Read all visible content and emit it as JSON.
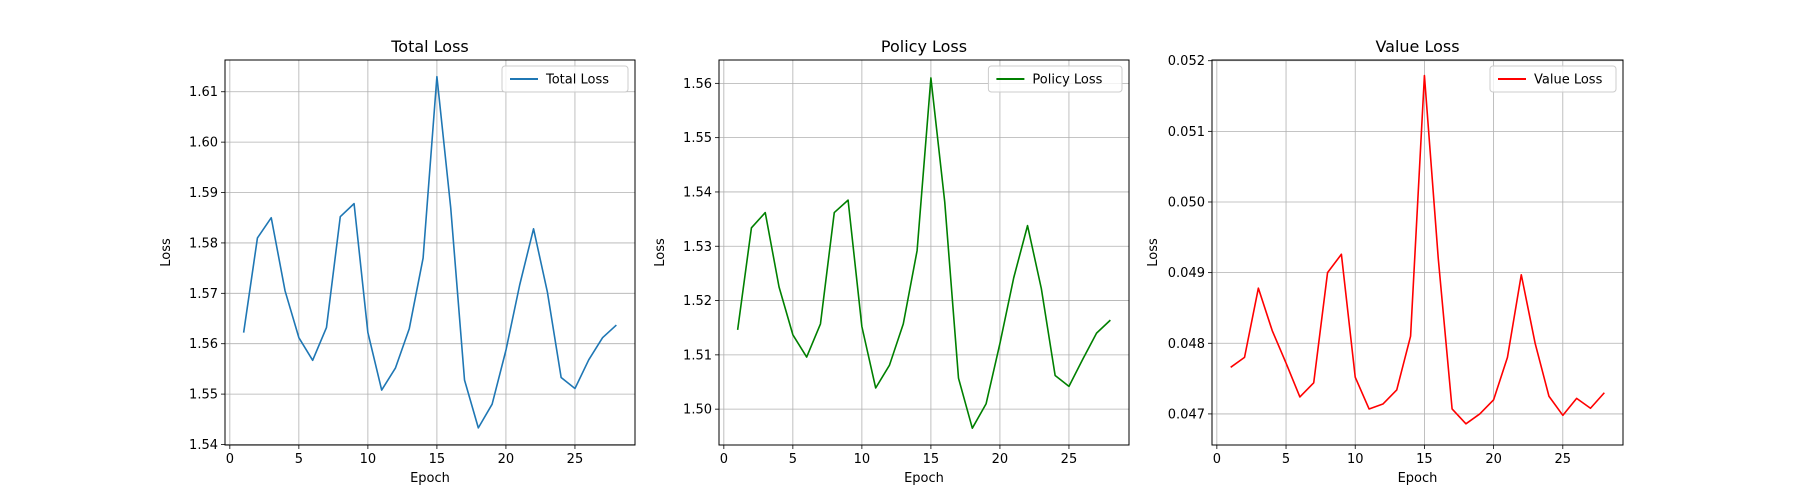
{
  "chart_data": [
    {
      "type": "line",
      "title": "Total Loss",
      "xlabel": "Epoch",
      "ylabel": "Loss",
      "grid": true,
      "legend_position": "top-right",
      "xlim": [
        -0.35,
        29.35
      ],
      "ylim": [
        1.5399,
        1.6163
      ],
      "xticks": [
        "0",
        "5",
        "10",
        "15",
        "20",
        "25"
      ],
      "yticks": [
        "1.54",
        "1.55",
        "1.56",
        "1.57",
        "1.58",
        "1.59",
        "1.60",
        "1.61"
      ],
      "series": [
        {
          "name": "Total Loss",
          "color": "#1f77b4",
          "x": [
            1,
            2,
            3,
            4,
            5,
            6,
            7,
            8,
            9,
            10,
            11,
            12,
            13,
            14,
            15,
            16,
            17,
            18,
            19,
            20,
            21,
            22,
            23,
            24,
            25,
            26,
            27,
            28
          ],
          "y": [
            1.5622,
            1.581,
            1.585,
            1.5705,
            1.5612,
            1.5567,
            1.5632,
            1.5852,
            1.5878,
            1.5622,
            1.5508,
            1.5552,
            1.563,
            1.577,
            1.613,
            1.587,
            1.5528,
            1.5433,
            1.548,
            1.5587,
            1.5717,
            1.5828,
            1.5703,
            1.5533,
            1.5511,
            1.5568,
            1.5612,
            1.5637
          ]
        }
      ]
    },
    {
      "type": "line",
      "title": "Policy Loss",
      "xlabel": "Epoch",
      "ylabel": "Loss",
      "grid": true,
      "legend_position": "top-right",
      "xlim": [
        -0.35,
        29.35
      ],
      "ylim": [
        1.4934,
        1.5643
      ],
      "xticks": [
        "0",
        "5",
        "10",
        "15",
        "20",
        "25"
      ],
      "yticks": [
        "1.50",
        "1.51",
        "1.52",
        "1.53",
        "1.54",
        "1.55",
        "1.56"
      ],
      "series": [
        {
          "name": "Policy Loss",
          "color": "#008000",
          "x": [
            1,
            2,
            3,
            4,
            5,
            6,
            7,
            8,
            9,
            10,
            11,
            12,
            13,
            14,
            15,
            16,
            17,
            18,
            19,
            20,
            21,
            22,
            23,
            24,
            25,
            26,
            27,
            28
          ],
          "y": [
            1.5146,
            1.5334,
            1.5362,
            1.5225,
            1.5137,
            1.5096,
            1.5157,
            1.5362,
            1.5385,
            1.5152,
            1.5039,
            1.5081,
            1.5157,
            1.5292,
            1.561,
            1.5382,
            1.5057,
            1.4965,
            1.501,
            1.5121,
            1.5242,
            1.5338,
            1.5222,
            1.5062,
            1.5042,
            1.5092,
            1.514,
            1.5164
          ]
        }
      ]
    },
    {
      "type": "line",
      "title": "Value Loss",
      "xlabel": "Epoch",
      "ylabel": "Loss",
      "grid": true,
      "legend_position": "top-right",
      "xlim": [
        -0.35,
        29.35
      ],
      "ylim": [
        0.04656,
        0.05201
      ],
      "xticks": [
        "0",
        "5",
        "10",
        "15",
        "20",
        "25"
      ],
      "yticks": [
        "0.047",
        "0.048",
        "0.049",
        "0.050",
        "0.051",
        "0.052"
      ],
      "series": [
        {
          "name": "Value Loss",
          "color": "#ff0000",
          "x": [
            1,
            2,
            3,
            4,
            5,
            6,
            7,
            8,
            9,
            10,
            11,
            12,
            13,
            14,
            15,
            16,
            17,
            18,
            19,
            20,
            21,
            22,
            23,
            24,
            25,
            26,
            27,
            28
          ],
          "y": [
            0.04766,
            0.0478,
            0.04878,
            0.04818,
            0.04772,
            0.04724,
            0.04744,
            0.049,
            0.04926,
            0.04752,
            0.04707,
            0.04714,
            0.04734,
            0.0481,
            0.05179,
            0.0492,
            0.04707,
            0.04686,
            0.047,
            0.0472,
            0.0478,
            0.04897,
            0.048,
            0.04725,
            0.04698,
            0.04722,
            0.04708,
            0.0473
          ]
        }
      ]
    }
  ]
}
